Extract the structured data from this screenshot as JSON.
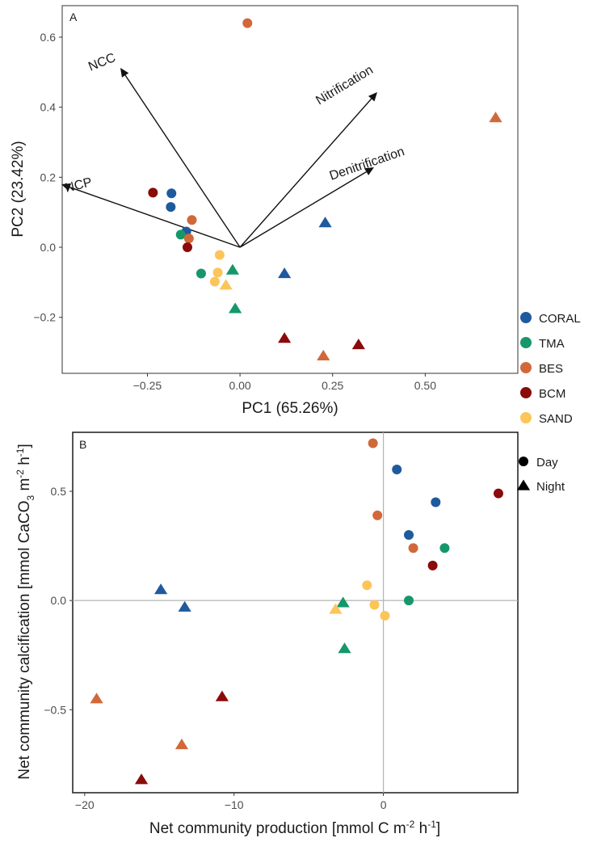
{
  "colors": {
    "CORAL": "#1f5a9e",
    "TMA": "#16976a",
    "BES": "#d2683a",
    "BCM": "#8b0a0a",
    "SAND": "#fcc55a"
  },
  "chart_data": [
    {
      "type": "scatter",
      "panel": "A",
      "xlabel": "PC1 (65.26%)",
      "ylabel": "PC2 (23.42%)",
      "xlim": [
        -0.48,
        0.75
      ],
      "ylim": [
        -0.36,
        0.69
      ],
      "xticks": [
        -0.25,
        0.0,
        0.25,
        0.5
      ],
      "xtick_labels": [
        "−0.25",
        "0.00",
        "0.25",
        "0.50"
      ],
      "yticks": [
        -0.2,
        0.0,
        0.2,
        0.4,
        0.6
      ],
      "ytick_labels": [
        "−0.2",
        "0.0",
        "0.2",
        "0.4",
        "0.6"
      ],
      "grid": false,
      "arrows": [
        {
          "label": "NCC",
          "x": -0.16,
          "y": 0.51,
          "angle": -20
        },
        {
          "label": "Nitrification",
          "x": 0.17,
          "y": 0.44,
          "angle": -34
        },
        {
          "label": "Denitrification",
          "x": 0.19,
          "y": 0.23,
          "angle": -20
        },
        {
          "label": "NCP",
          "x": -0.21,
          "y": 0.17,
          "angle": -15
        }
      ],
      "points": [
        {
          "group": "BES",
          "shape": "circle",
          "x": 0.02,
          "y": 0.64
        },
        {
          "group": "BES",
          "shape": "triangle",
          "x": 0.69,
          "y": 0.37
        },
        {
          "group": "CORAL",
          "shape": "triangle",
          "x": 0.23,
          "y": 0.07
        },
        {
          "group": "BCM",
          "shape": "circle",
          "x": -0.235,
          "y": 0.156
        },
        {
          "group": "CORAL",
          "shape": "circle",
          "x": -0.185,
          "y": 0.154
        },
        {
          "group": "CORAL",
          "shape": "circle",
          "x": -0.187,
          "y": 0.115
        },
        {
          "group": "BES",
          "shape": "circle",
          "x": -0.13,
          "y": 0.078
        },
        {
          "group": "CORAL",
          "shape": "circle",
          "x": -0.145,
          "y": 0.045
        },
        {
          "group": "TMA",
          "shape": "circle",
          "x": -0.16,
          "y": 0.036
        },
        {
          "group": "BES",
          "shape": "circle",
          "x": -0.138,
          "y": 0.025
        },
        {
          "group": "BCM",
          "shape": "circle",
          "x": -0.142,
          "y": 0.0
        },
        {
          "group": "SAND",
          "shape": "circle",
          "x": -0.055,
          "y": -0.022
        },
        {
          "group": "TMA",
          "shape": "circle",
          "x": -0.105,
          "y": -0.075
        },
        {
          "group": "SAND",
          "shape": "circle",
          "x": -0.06,
          "y": -0.072
        },
        {
          "group": "TMA",
          "shape": "triangle",
          "x": -0.02,
          "y": -0.065
        },
        {
          "group": "SAND",
          "shape": "circle",
          "x": -0.068,
          "y": -0.098
        },
        {
          "group": "SAND",
          "shape": "triangle",
          "x": -0.038,
          "y": -0.108
        },
        {
          "group": "CORAL",
          "shape": "triangle",
          "x": 0.12,
          "y": -0.075
        },
        {
          "group": "TMA",
          "shape": "triangle",
          "x": -0.013,
          "y": -0.175
        },
        {
          "group": "BCM",
          "shape": "triangle",
          "x": 0.12,
          "y": -0.26
        },
        {
          "group": "BCM",
          "shape": "triangle",
          "x": 0.32,
          "y": -0.278
        },
        {
          "group": "BES",
          "shape": "triangle",
          "x": 0.225,
          "y": -0.31
        }
      ]
    },
    {
      "type": "scatter",
      "panel": "B",
      "xlabel_parts": [
        "Net community production [mmol C m",
        "-2",
        " h",
        "-1",
        "]"
      ],
      "ylabel_parts": [
        "Net community calcification [mmol CaCO",
        "3",
        " m",
        "-2",
        " h",
        "-1",
        "]"
      ],
      "xlim": [
        -20.8,
        9.0
      ],
      "ylim": [
        -0.88,
        0.77
      ],
      "xticks": [
        -20,
        -10,
        0
      ],
      "xtick_labels": [
        "−20",
        "−10",
        "0"
      ],
      "yticks": [
        -0.5,
        0.0,
        0.5
      ],
      "ytick_labels": [
        "−0.5",
        "0.0",
        "0.5"
      ],
      "reference_lines": {
        "x": 0,
        "y": 0
      },
      "grid": false,
      "points": [
        {
          "group": "BES",
          "shape": "circle",
          "x": -0.7,
          "y": 0.72
        },
        {
          "group": "CORAL",
          "shape": "circle",
          "x": 0.9,
          "y": 0.6
        },
        {
          "group": "BCM",
          "shape": "circle",
          "x": 7.7,
          "y": 0.49
        },
        {
          "group": "CORAL",
          "shape": "circle",
          "x": 3.5,
          "y": 0.45
        },
        {
          "group": "BES",
          "shape": "circle",
          "x": -0.4,
          "y": 0.39
        },
        {
          "group": "CORAL",
          "shape": "circle",
          "x": 1.7,
          "y": 0.3
        },
        {
          "group": "BES",
          "shape": "circle",
          "x": 2.0,
          "y": 0.24
        },
        {
          "group": "TMA",
          "shape": "circle",
          "x": 4.1,
          "y": 0.24
        },
        {
          "group": "BCM",
          "shape": "circle",
          "x": 3.3,
          "y": 0.16
        },
        {
          "group": "SAND",
          "shape": "circle",
          "x": -1.1,
          "y": 0.07
        },
        {
          "group": "TMA",
          "shape": "circle",
          "x": 1.7,
          "y": 0.0
        },
        {
          "group": "SAND",
          "shape": "circle",
          "x": -0.6,
          "y": -0.02
        },
        {
          "group": "SAND",
          "shape": "circle",
          "x": 0.1,
          "y": -0.07
        },
        {
          "group": "TMA",
          "shape": "triangle",
          "x": -2.7,
          "y": -0.01
        },
        {
          "group": "SAND",
          "shape": "triangle",
          "x": -3.2,
          "y": -0.04
        },
        {
          "group": "TMA",
          "shape": "triangle",
          "x": -2.6,
          "y": -0.22
        },
        {
          "group": "CORAL",
          "shape": "triangle",
          "x": -14.9,
          "y": 0.05
        },
        {
          "group": "CORAL",
          "shape": "triangle",
          "x": -13.3,
          "y": -0.03
        },
        {
          "group": "BES",
          "shape": "triangle",
          "x": -19.2,
          "y": -0.45
        },
        {
          "group": "BCM",
          "shape": "triangle",
          "x": -10.8,
          "y": -0.44
        },
        {
          "group": "BES",
          "shape": "triangle",
          "x": -13.5,
          "y": -0.66
        },
        {
          "group": "BCM",
          "shape": "triangle",
          "x": -16.2,
          "y": -0.82
        }
      ]
    }
  ],
  "legend_groups": [
    {
      "label": "CORAL",
      "color": "#1f5a9e"
    },
    {
      "label": "TMA",
      "color": "#16976a"
    },
    {
      "label": "BES",
      "color": "#d2683a"
    },
    {
      "label": "BCM",
      "color": "#8b0a0a"
    },
    {
      "label": "SAND",
      "color": "#fcc55a"
    }
  ],
  "legend_shapes": [
    {
      "label": "Day",
      "shape": "circle"
    },
    {
      "label": "Night",
      "shape": "triangle"
    }
  ]
}
